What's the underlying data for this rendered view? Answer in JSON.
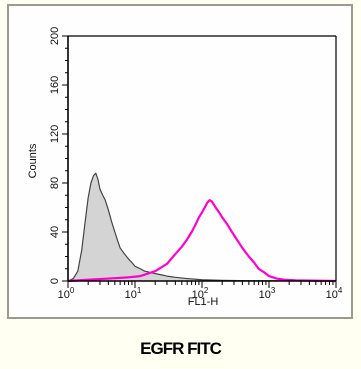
{
  "caption": "EGFR FITC",
  "chart_data": {
    "type": "line",
    "xlabel": "FL1-H",
    "ylabel": "Counts",
    "x_scale": "log",
    "xlim": [
      1,
      10000
    ],
    "ylim": [
      0,
      200
    ],
    "x_ticks": [
      {
        "value": 1,
        "base": "10",
        "exp": "0"
      },
      {
        "value": 10,
        "base": "10",
        "exp": "1"
      },
      {
        "value": 100,
        "base": "10",
        "exp": "2"
      },
      {
        "value": 1000,
        "base": "10",
        "exp": "3"
      },
      {
        "value": 10000,
        "base": "10",
        "exp": "4"
      }
    ],
    "y_ticks": [
      "0",
      "40",
      "80",
      "120",
      "160",
      "200"
    ],
    "series": [
      {
        "color": "#444444",
        "fill": "#d4d4d4",
        "points": [
          [
            1.0,
            0
          ],
          [
            1.2,
            2
          ],
          [
            1.4,
            8
          ],
          [
            1.6,
            25
          ],
          [
            1.8,
            48
          ],
          [
            2.0,
            68
          ],
          [
            2.2,
            80
          ],
          [
            2.4,
            86
          ],
          [
            2.6,
            88
          ],
          [
            2.8,
            83
          ],
          [
            3.0,
            75
          ],
          [
            3.3,
            70
          ],
          [
            3.6,
            66
          ],
          [
            4.0,
            58
          ],
          [
            4.5,
            48
          ],
          [
            5.0,
            40
          ],
          [
            5.5,
            33
          ],
          [
            6.0,
            27
          ],
          [
            7.0,
            22
          ],
          [
            8.0,
            18
          ],
          [
            9.0,
            15
          ],
          [
            10,
            12
          ],
          [
            12,
            10
          ],
          [
            14,
            8
          ],
          [
            17,
            7
          ],
          [
            20,
            6
          ],
          [
            25,
            5
          ],
          [
            30,
            4
          ],
          [
            40,
            3
          ],
          [
            60,
            2
          ],
          [
            100,
            1
          ],
          [
            200,
            0.5
          ],
          [
            500,
            0.2
          ],
          [
            10000,
            0
          ]
        ]
      },
      {
        "color": "#ff00cc",
        "points": [
          [
            1.0,
            0
          ],
          [
            2.0,
            1
          ],
          [
            4.0,
            2
          ],
          [
            8.0,
            3
          ],
          [
            12,
            4
          ],
          [
            20,
            8
          ],
          [
            30,
            14
          ],
          [
            40,
            22
          ],
          [
            50,
            28
          ],
          [
            60,
            34
          ],
          [
            70,
            40
          ],
          [
            80,
            46
          ],
          [
            90,
            52
          ],
          [
            100,
            56
          ],
          [
            110,
            60
          ],
          [
            120,
            64
          ],
          [
            130,
            66
          ],
          [
            140,
            65
          ],
          [
            160,
            60
          ],
          [
            180,
            56
          ],
          [
            200,
            52
          ],
          [
            240,
            46
          ],
          [
            280,
            40
          ],
          [
            330,
            34
          ],
          [
            400,
            27
          ],
          [
            500,
            20
          ],
          [
            600,
            15
          ],
          [
            700,
            10
          ],
          [
            850,
            7
          ],
          [
            1000,
            4
          ],
          [
            1300,
            2
          ],
          [
            1700,
            1
          ],
          [
            2500,
            0.5
          ],
          [
            10000,
            0
          ]
        ]
      }
    ]
  }
}
